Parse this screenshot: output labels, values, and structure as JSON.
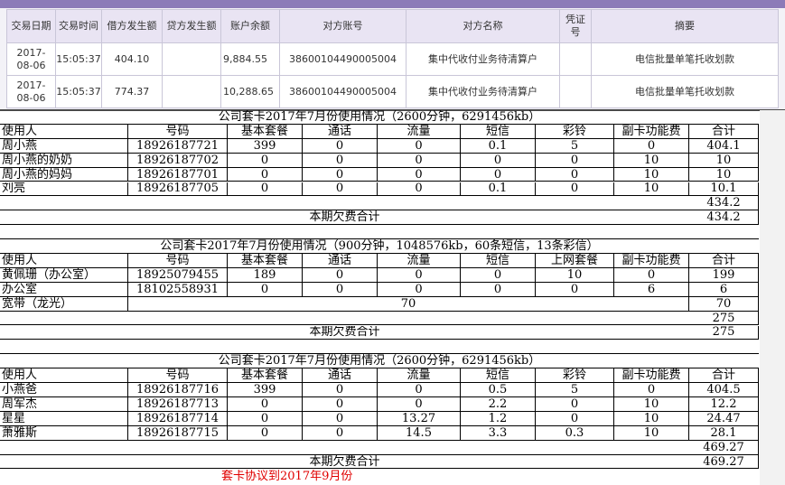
{
  "bank_table": {
    "headers": [
      "交易日期",
      "交易时间",
      "借方发生额",
      "贷方发生额",
      "账户余额",
      "对方账号",
      "对方名称",
      "凭证号",
      "摘要"
    ],
    "rows": [
      {
        "date": "2017-08-06",
        "time": "15:05:37",
        "debit": "404.10",
        "balance": "9,884.55",
        "account": "38600104490005004",
        "name": "集中代收付业务待清算户",
        "summary": "电信批量单笔托收划款"
      },
      {
        "date": "2017-08-06",
        "time": "15:05:37",
        "debit": "774.37",
        "balance": "10,288.65",
        "account": "38600104490005004",
        "name": "集中代收付业务待清算户",
        "summary": "电信批量单笔托收划款"
      }
    ]
  },
  "sheets": [
    {
      "title": "公司套卡2017年7月份使用情况（2600分钟，6291456kb）",
      "headers": [
        "使用人",
        "号码",
        "基本套餐",
        "通话",
        "流量",
        "短信",
        "彩铃",
        "副卡功能费",
        "合计"
      ],
      "rows": [
        {
          "user": "周小燕",
          "number": "18926187721",
          "values": [
            399,
            0,
            0,
            0.1,
            5,
            0
          ],
          "total": 404.1
        },
        {
          "user": "周小燕的奶奶",
          "number": "18926187702",
          "values": [
            0,
            0,
            0,
            0,
            0,
            10
          ],
          "total": 10
        },
        {
          "user": "周小燕的妈妈",
          "number": "18926187701",
          "values": [
            0,
            0,
            0,
            0,
            0,
            10
          ],
          "total": 10
        },
        {
          "user": "刘亮",
          "number": "18926187705",
          "values": [
            0,
            0,
            0,
            0.1,
            0,
            10
          ],
          "total": 10.1
        }
      ],
      "sum": 434.2,
      "due_label": "本期欠费合计",
      "due": 434.2
    },
    {
      "title": "公司套卡2017年7月份使用情况（900分钟，1048576kb，60条短信，13条彩信）",
      "headers": [
        "使用人",
        "号码",
        "基本套餐",
        "通话",
        "流量",
        "短信",
        "上网套餐",
        "副卡功能费",
        "合计"
      ],
      "rows": [
        {
          "user": "黄佩珊（办公室）",
          "number": "18925079455",
          "values": [
            189,
            0,
            0,
            0,
            10,
            0
          ],
          "total": 199
        },
        {
          "user": "办公室",
          "number": "18102558931",
          "values": [
            0,
            0,
            0,
            0,
            0,
            6
          ],
          "total": 6
        },
        {
          "user": "宽带（龙光）",
          "fee": 70,
          "total": 70
        }
      ],
      "sum": 275,
      "due_label": "本期欠费合计",
      "due": 275
    },
    {
      "title": "公司套卡2017年7月份使用情况（2600分钟，6291456kb）",
      "headers": [
        "使用人",
        "号码",
        "基本套餐",
        "通话",
        "流量",
        "短信",
        "彩铃",
        "副卡功能费",
        "合计"
      ],
      "rows": [
        {
          "user": "小燕爸",
          "number": "18926187716",
          "values": [
            399,
            0,
            0,
            0.5,
            5,
            0
          ],
          "total": 404.5
        },
        {
          "user": "周军杰",
          "number": "18926187713",
          "values": [
            0,
            0,
            0,
            2.2,
            0,
            10
          ],
          "total": 12.2
        },
        {
          "user": "星星",
          "number": "18926187714",
          "values": [
            0,
            0,
            13.27,
            1.2,
            0,
            10
          ],
          "total": 24.47
        },
        {
          "user": "萧雅斯",
          "number": "18926187715",
          "values": [
            0,
            0,
            14.5,
            3.3,
            0.3,
            10
          ],
          "total": 28.1
        }
      ],
      "sum": 469.27,
      "due_label": "本期欠费合计",
      "due": 469.27
    }
  ],
  "note": "套卡协议到2017年9月份"
}
